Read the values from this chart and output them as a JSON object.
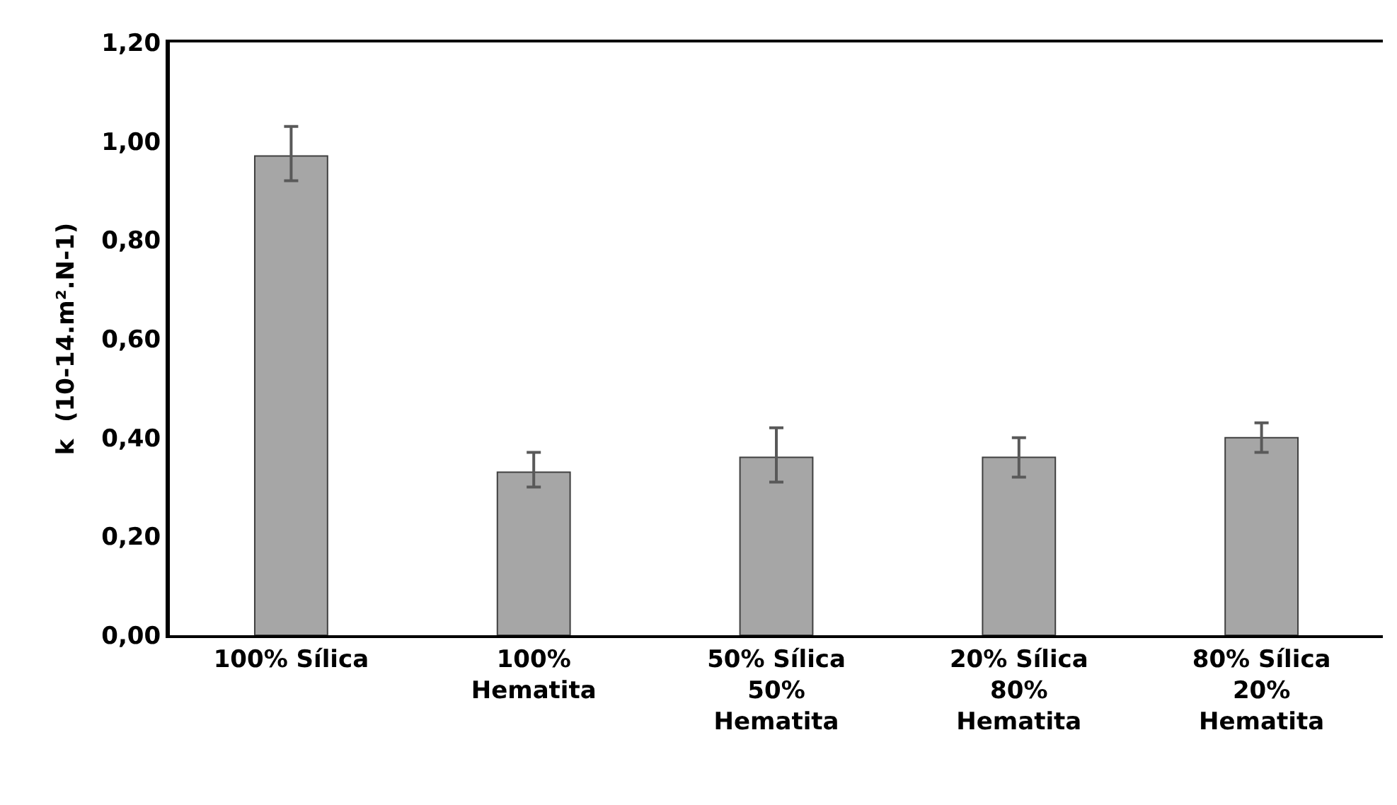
{
  "chart_data": {
    "type": "bar",
    "ylabel": "k  (10-14.m².N-1)",
    "categories": [
      "100% Sílica",
      "100%\nHematita",
      "50% Sílica\n50%\nHematita",
      "20% Sílica\n80%\nHematita",
      "80% Sílica\n20%\nHematita"
    ],
    "values": [
      0.97,
      0.33,
      0.36,
      0.36,
      0.4
    ],
    "errors": [
      [
        0.92,
        1.03
      ],
      [
        0.3,
        0.37
      ],
      [
        0.31,
        0.42
      ],
      [
        0.32,
        0.4
      ],
      [
        0.37,
        0.43
      ]
    ],
    "color": "#a6a6a6",
    "ylim": [
      0,
      1.2
    ],
    "yticks": [
      {
        "value": 0,
        "label": "0,00"
      },
      {
        "value": 0.2,
        "label": "0,20"
      },
      {
        "value": 0.4,
        "label": "0,40"
      },
      {
        "value": 0.6,
        "label": "0,60"
      },
      {
        "value": 0.8,
        "label": "0,80"
      },
      {
        "value": 1.0,
        "label": "1,00"
      },
      {
        "value": 1.2,
        "label": "1,20"
      }
    ]
  }
}
